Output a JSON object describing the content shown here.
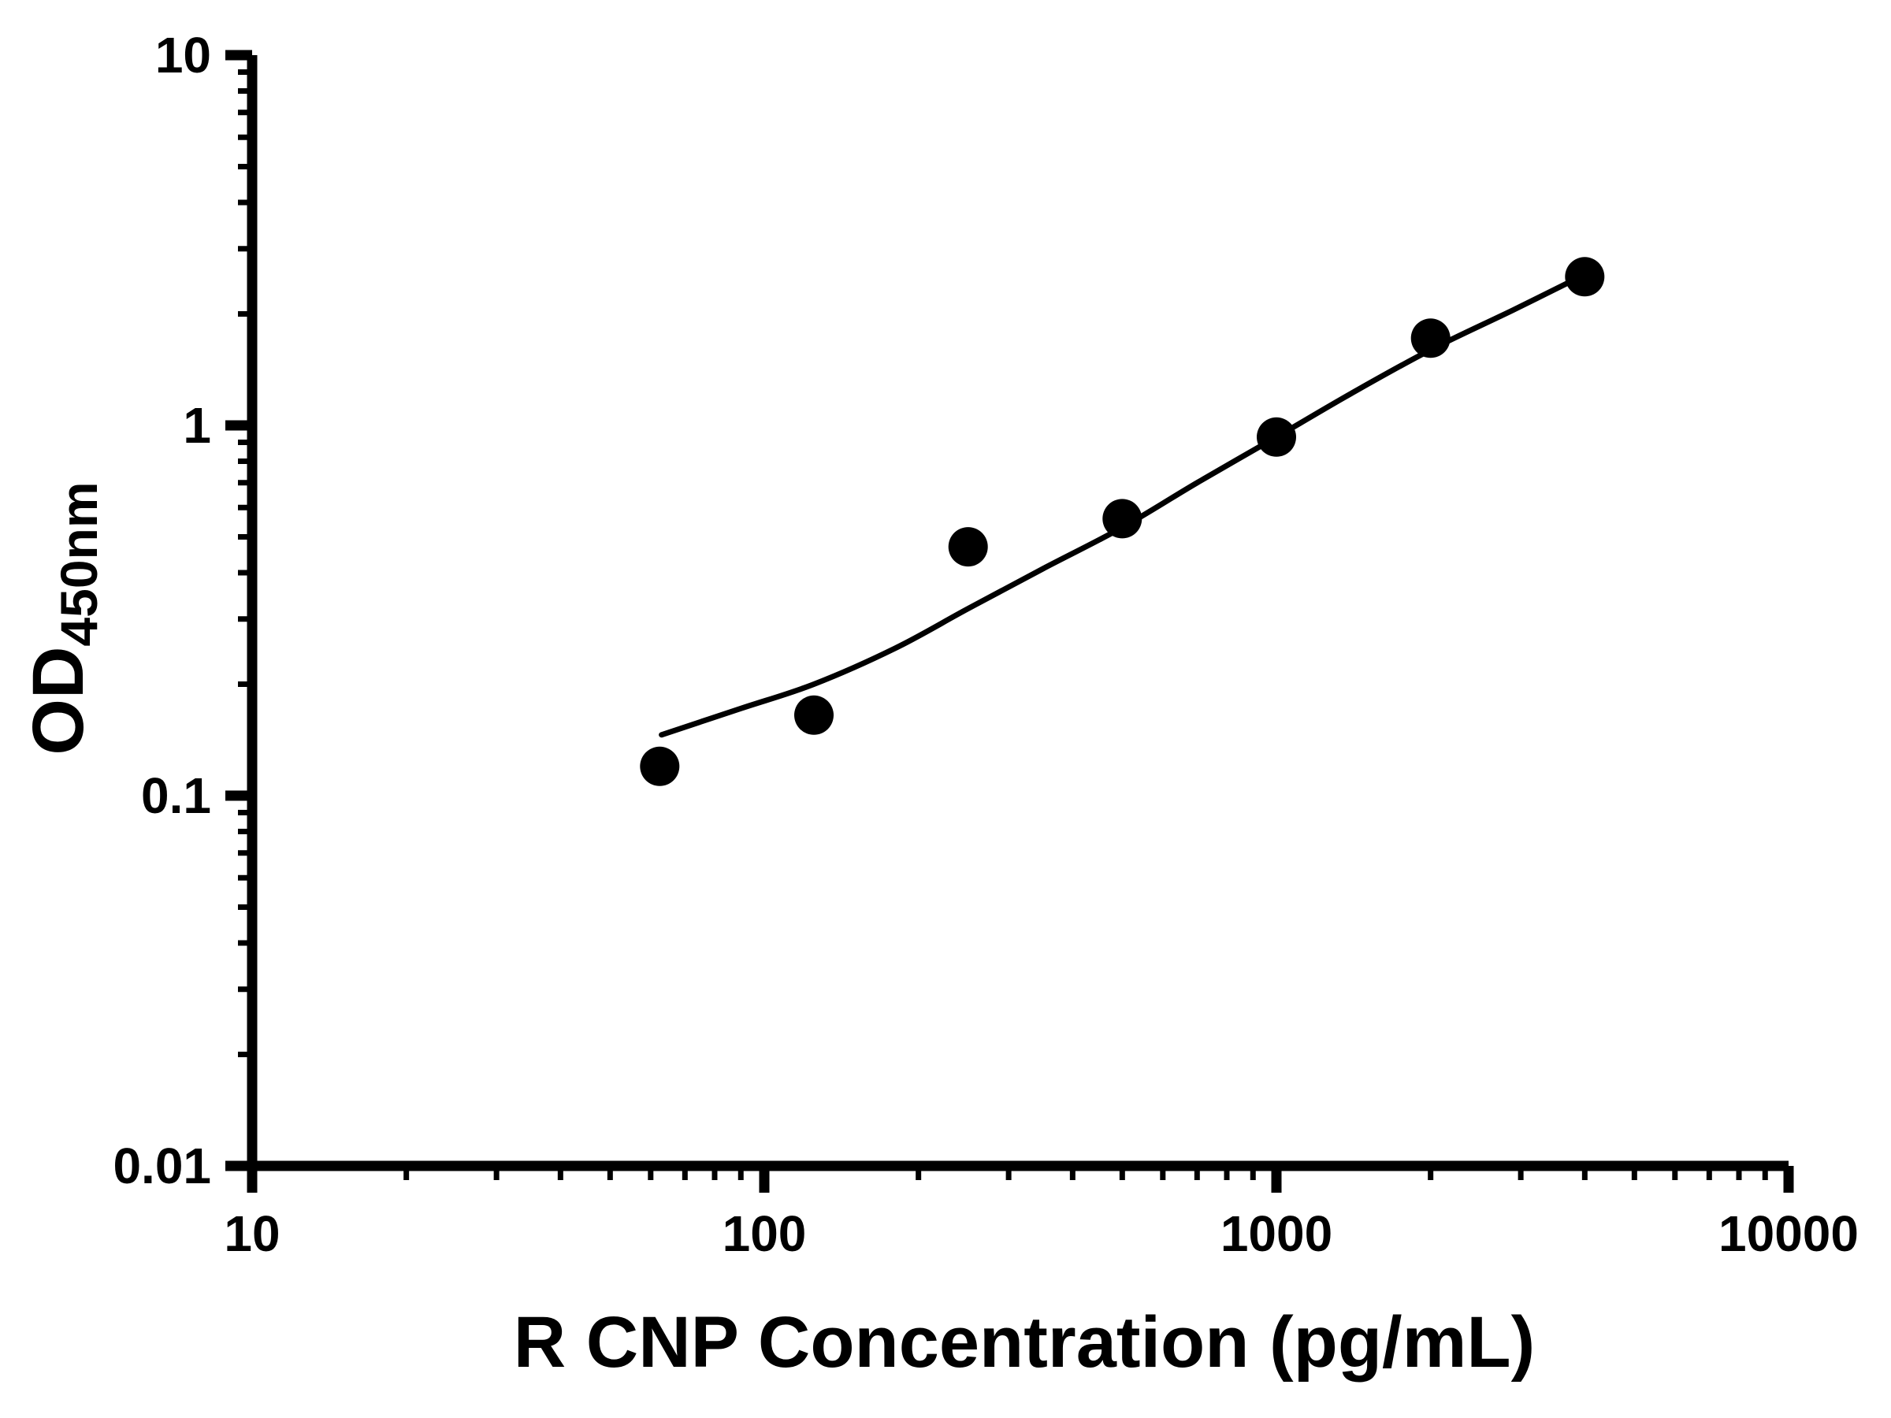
{
  "chart_data": {
    "type": "scatter",
    "title": "",
    "xlabel": "R CNP Concentration (pg/mL)",
    "ylabel_main": "OD",
    "ylabel_sub": "450nm",
    "x_scale": "log",
    "y_scale": "log",
    "xlim": [
      10,
      10000
    ],
    "ylim": [
      0.01,
      10
    ],
    "x_ticks": [
      10,
      100,
      1000,
      10000
    ],
    "x_tick_labels": [
      "10",
      "100",
      "1000",
      "10000"
    ],
    "y_ticks": [
      0.01,
      0.1,
      1,
      10
    ],
    "y_tick_labels": [
      "0.01",
      "0.1",
      "1",
      "10"
    ],
    "grid": false,
    "legend": false,
    "colors": {
      "points": "#000000",
      "curve": "#000000",
      "axes": "#000000",
      "background": "#ffffff"
    },
    "series": [
      {
        "name": "standards",
        "type": "scatter",
        "x": [
          62.5,
          125,
          250,
          500,
          1000,
          2000,
          4000
        ],
        "y": [
          0.12,
          0.165,
          0.47,
          0.56,
          0.93,
          1.72,
          2.52
        ]
      },
      {
        "name": "fitted-curve",
        "type": "line",
        "x": [
          63,
          90,
          125,
          180,
          250,
          350,
          500,
          700,
          1000,
          1400,
          2000,
          2900,
          4100
        ],
        "y": [
          0.146,
          0.172,
          0.2,
          0.25,
          0.32,
          0.41,
          0.53,
          0.7,
          0.93,
          1.22,
          1.6,
          2.05,
          2.6
        ]
      }
    ]
  }
}
